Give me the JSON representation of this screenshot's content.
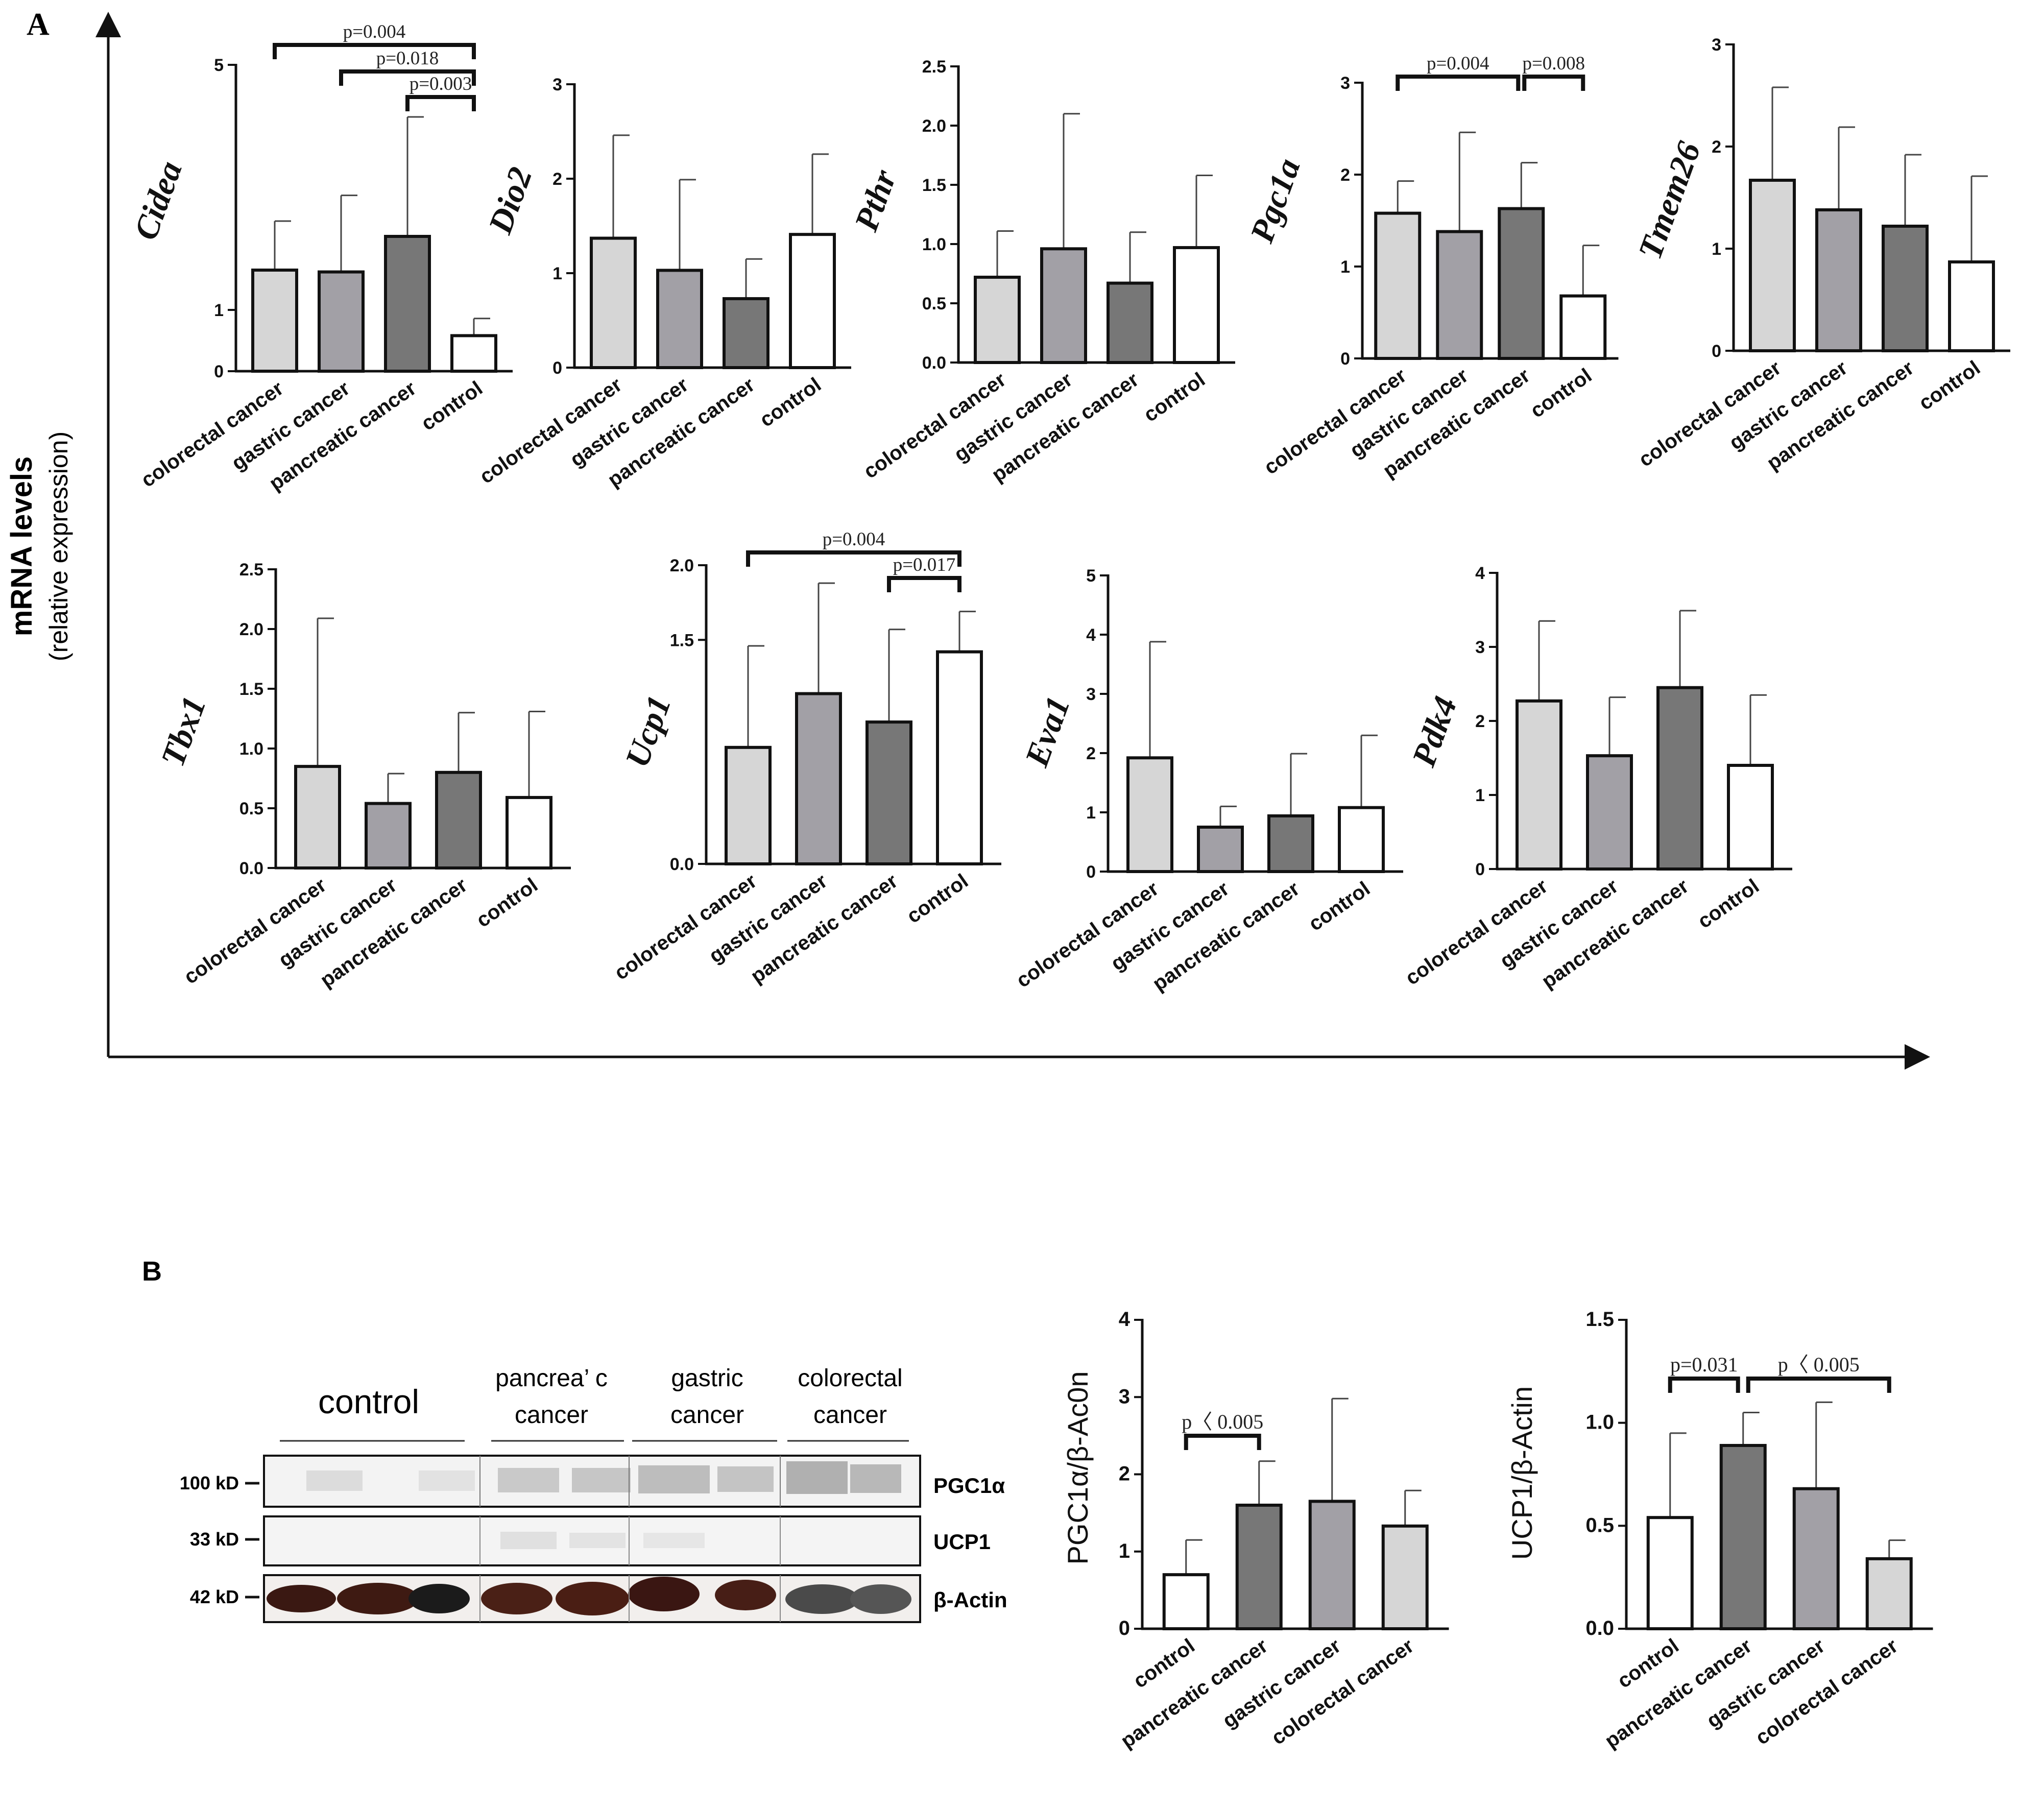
{
  "panel_a": {
    "label": "A",
    "y_label": "mRNA levels",
    "y_sublabel": "(relative expression)"
  },
  "panel_b": {
    "label": "B",
    "blot": {
      "groups": [
        "control",
        "pancrea’ c cancer",
        "gastric cancer",
        "colorectal cancer"
      ],
      "groups_split": [
        [
          "control"
        ],
        [
          "pancrea’ c",
          "cancer"
        ],
        [
          "gastric",
          "cancer"
        ],
        [
          "colorectal",
          "cancer"
        ]
      ],
      "rows": [
        {
          "kd": "100 kD",
          "protein": "PGC1α"
        },
        {
          "kd": "33 kD",
          "protein": "UCP1"
        },
        {
          "kd": "42 kD",
          "protein": "β-Actin"
        }
      ]
    }
  },
  "colors": {
    "colorectal cancer": "#d6d6d6",
    "gastric cancer": "#a2a0a6",
    "pancreatic cancer": "#777777",
    "control": "#ffffff",
    "axis": "#111111"
  },
  "chart_data": [
    {
      "id": "cidea",
      "type": "bar",
      "title": "Cidea",
      "categories": [
        "colorectal cancer",
        "gastric cancer",
        "pancreatic cancer",
        "control"
      ],
      "values": [
        1.65,
        1.62,
        2.2,
        0.58
      ],
      "errors": [
        0.8,
        1.25,
        1.95,
        0.28
      ],
      "yticks": [
        0,
        1,
        5
      ],
      "tick_labels": [
        "0",
        "1",
        "5"
      ],
      "ylim": [
        0,
        5
      ],
      "brackets": [
        {
          "from": 0,
          "to": 3,
          "label": "p=0.004"
        },
        {
          "from": 1,
          "to": 3,
          "label": "p=0.018"
        },
        {
          "from": 2,
          "to": 3,
          "label": "p=0.003"
        }
      ]
    },
    {
      "id": "dio2",
      "type": "bar",
      "title": "Dio2",
      "categories": [
        "colorectal cancer",
        "gastric cancer",
        "pancreatic cancer",
        "control"
      ],
      "values": [
        1.37,
        1.03,
        0.73,
        1.41
      ],
      "errors": [
        1.09,
        0.96,
        0.42,
        0.85
      ],
      "yticks": [
        0,
        1,
        2,
        3
      ],
      "tick_labels": [
        "0",
        "1",
        "2",
        "3"
      ],
      "ylim": [
        0,
        3
      ],
      "brackets": []
    },
    {
      "id": "pthr",
      "type": "bar",
      "title": "Pthr",
      "categories": [
        "colorectal cancer",
        "gastric cancer",
        "pancreatic cancer",
        "control"
      ],
      "values": [
        0.72,
        0.96,
        0.67,
        0.97
      ],
      "errors": [
        0.39,
        1.14,
        0.43,
        0.61
      ],
      "yticks": [
        0,
        0.5,
        1,
        1.5,
        2,
        2.5
      ],
      "tick_labels": [
        "0.0",
        "0.5",
        "1.0",
        "1.5",
        "2.0",
        "2.5"
      ],
      "ylim": [
        0,
        2.5
      ],
      "brackets": []
    },
    {
      "id": "pgc1a",
      "type": "bar",
      "title": "Pgc1a",
      "categories": [
        "colorectal cancer",
        "gastric cancer",
        "pancreatic cancer",
        "control"
      ],
      "values": [
        1.58,
        1.38,
        1.63,
        0.68
      ],
      "errors": [
        0.35,
        1.08,
        0.5,
        0.55
      ],
      "yticks": [
        0,
        1,
        2,
        3
      ],
      "tick_labels": [
        "0",
        "1",
        "2",
        "3"
      ],
      "ylim": [
        0,
        3
      ],
      "brackets": [
        {
          "from": 0,
          "to": 2,
          "label": "p=0.004"
        },
        {
          "from": 2,
          "to": 3,
          "label": "p=0.008"
        }
      ]
    },
    {
      "id": "tmem26",
      "type": "bar",
      "title": "Tmem26",
      "categories": [
        "colorectal cancer",
        "gastric cancer",
        "pancreatic cancer",
        "control"
      ],
      "values": [
        1.67,
        1.38,
        1.22,
        0.87
      ],
      "errors": [
        0.91,
        0.81,
        0.7,
        0.84
      ],
      "yticks": [
        0,
        1,
        2,
        3
      ],
      "tick_labels": [
        "0",
        "1",
        "2",
        "3"
      ],
      "ylim": [
        0,
        3
      ],
      "brackets": []
    },
    {
      "id": "tbx1",
      "type": "bar",
      "title": "Tbx1",
      "categories": [
        "colorectal cancer",
        "gastric cancer",
        "pancreatic cancer",
        "control"
      ],
      "values": [
        0.85,
        0.54,
        0.8,
        0.59
      ],
      "errors": [
        1.24,
        0.25,
        0.5,
        0.72
      ],
      "yticks": [
        0,
        0.5,
        1,
        1.5,
        2,
        2.5
      ],
      "tick_labels": [
        "0.0",
        "0.5",
        "1.0",
        "1.5",
        "2.0",
        "2.5"
      ],
      "ylim": [
        0,
        2.5
      ],
      "brackets": []
    },
    {
      "id": "ucp1",
      "type": "bar",
      "title": "Ucp1",
      "categories": [
        "colorectal cancer",
        "gastric cancer",
        "pancreatic cancer",
        "control"
      ],
      "values": [
        0.78,
        1.14,
        0.95,
        1.42
      ],
      "errors": [
        0.68,
        0.74,
        0.62,
        0.27
      ],
      "yticks": [
        0,
        1.5,
        2
      ],
      "tick_labels": [
        "0.0",
        "1.5",
        "2.0"
      ],
      "ylim": [
        0,
        2
      ],
      "brackets": [
        {
          "from": 0,
          "to": 3,
          "label": "p=0.004"
        },
        {
          "from": 2,
          "to": 3,
          "label": "p=0.017"
        }
      ]
    },
    {
      "id": "eva1",
      "type": "bar",
      "title": "Eva1",
      "categories": [
        "colorectal cancer",
        "gastric cancer",
        "pancreatic cancer",
        "control"
      ],
      "values": [
        1.92,
        0.75,
        0.94,
        1.08
      ],
      "errors": [
        1.96,
        0.35,
        1.05,
        1.22
      ],
      "yticks": [
        0,
        1,
        2,
        3,
        4,
        5
      ],
      "tick_labels": [
        "0",
        "1",
        "2",
        "3",
        "4",
        "5"
      ],
      "ylim": [
        0,
        5
      ],
      "brackets": []
    },
    {
      "id": "pdk4",
      "type": "bar",
      "title": "Pdk4",
      "categories": [
        "colorectal cancer",
        "gastric cancer",
        "pancreatic cancer",
        "control"
      ],
      "values": [
        2.27,
        1.53,
        2.45,
        1.4
      ],
      "errors": [
        1.08,
        0.79,
        1.04,
        0.95
      ],
      "yticks": [
        0,
        1,
        2,
        3,
        4
      ],
      "tick_labels": [
        "0",
        "1",
        "2",
        "3",
        "4"
      ],
      "ylim": [
        0,
        4
      ],
      "brackets": []
    },
    {
      "id": "pgc1a_actin",
      "type": "bar",
      "title": "",
      "ylabel": "PGC1α/β-Ac0n",
      "categories": [
        "control",
        "pancreatic cancer",
        "gastric cancer",
        "colorectal cancer"
      ],
      "values": [
        0.7,
        1.6,
        1.65,
        1.33
      ],
      "errors": [
        0.45,
        0.57,
        1.33,
        0.46
      ],
      "yticks": [
        0,
        1,
        2,
        3,
        4
      ],
      "tick_labels": [
        "0",
        "1",
        "2",
        "3",
        "4"
      ],
      "ylim": [
        0,
        4
      ],
      "brackets": [
        {
          "from": 0,
          "to": 1,
          "label": "p〈 0.005"
        }
      ]
    },
    {
      "id": "ucp1_actin",
      "type": "bar",
      "title": "",
      "ylabel": "UCP1/β-Actin",
      "categories": [
        "control",
        "pancreatic cancer",
        "gastric cancer",
        "colorectal cancer"
      ],
      "values": [
        0.54,
        0.89,
        0.68,
        0.34
      ],
      "errors": [
        0.41,
        0.16,
        0.42,
        0.09
      ],
      "yticks": [
        0,
        0.5,
        1,
        1.5
      ],
      "tick_labels": [
        "0.0",
        "0.5",
        "1.0",
        "1.5"
      ],
      "ylim": [
        0,
        1.5
      ],
      "brackets": [
        {
          "from": 0,
          "to": 1,
          "label": "p=0.031"
        },
        {
          "from": 1,
          "to": 3,
          "label": "p〈 0.005"
        }
      ]
    }
  ]
}
